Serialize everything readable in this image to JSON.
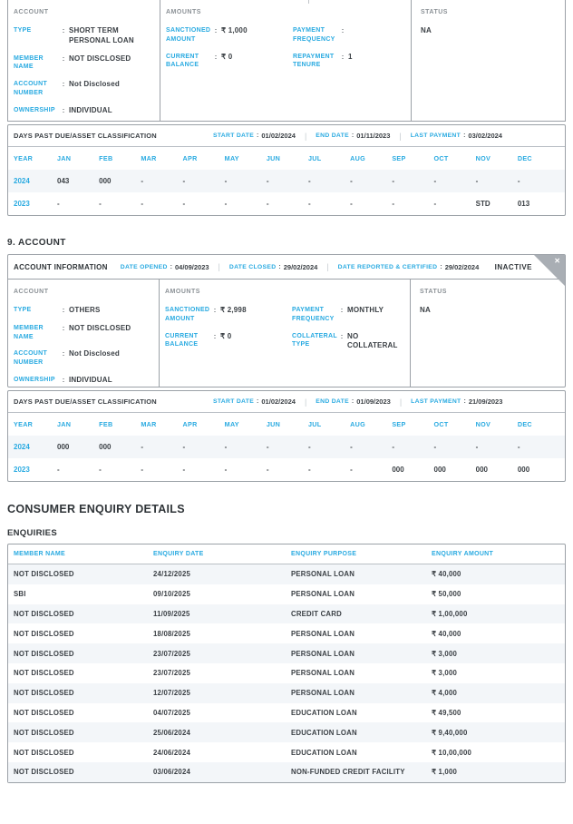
{
  "ui": {
    "colon": ":",
    "pipe": "|",
    "close_glyph": "✕"
  },
  "colors": {
    "accent": "#29aae1",
    "text_dark": "#3b4045",
    "border_gray": "#9ba1a7",
    "row_alt": "#f3f6f9",
    "ribbon_gray": "#a9aeb4"
  },
  "accounts": [
    {
      "account_label": "ACCOUNT",
      "fields": [
        {
          "label": "TYPE",
          "value": "SHORT TERM PERSONAL LOAN"
        },
        {
          "label": "MEMBER NAME",
          "value": "NOT DISCLOSED"
        },
        {
          "label": "ACCOUNT NUMBER",
          "value": "Not Disclosed"
        },
        {
          "label": "OWNERSHIP",
          "value": "INDIVIDUAL"
        }
      ],
      "amounts_label": "AMOUNTS",
      "amounts_left": [
        {
          "label": "SANCTIONED AMOUNT",
          "value": "₹ 1,000"
        },
        {
          "label": "CURRENT BALANCE",
          "value": "₹ 0"
        }
      ],
      "amounts_right": [
        {
          "label": "PAYMENT FREQUENCY",
          "value": ""
        },
        {
          "label": "REPAYMENT TENURE",
          "value": "1"
        }
      ],
      "status_label": "STATUS",
      "status_value": "NA",
      "dpd": {
        "title": "DAYS PAST DUE/ASSET CLASSIFICATION",
        "start_date_label": "START DATE",
        "start_date": "01/02/2024",
        "end_date_label": "END DATE",
        "end_date": "01/11/2023",
        "last_payment_label": "LAST PAYMENT",
        "last_payment": "03/02/2024",
        "columns": [
          "YEAR",
          "JAN",
          "FEB",
          "MAR",
          "APR",
          "MAY",
          "JUN",
          "JUL",
          "AUG",
          "SEP",
          "OCT",
          "NOV",
          "DEC"
        ],
        "rows": [
          {
            "year": "2024",
            "values": [
              "043",
              "000",
              "-",
              "-",
              "-",
              "-",
              "-",
              "-",
              "-",
              "-",
              "-",
              "-"
            ]
          },
          {
            "year": "2023",
            "values": [
              "-",
              "-",
              "-",
              "-",
              "-",
              "-",
              "-",
              "-",
              "-",
              "-",
              "STD",
              "013"
            ]
          }
        ]
      }
    },
    {
      "heading": "9. ACCOUNT",
      "header": {
        "title": "ACCOUNT INFORMATION",
        "date_opened_label": "DATE OPENED",
        "date_opened": "04/09/2023",
        "date_closed_label": "DATE CLOSED",
        "date_closed": "29/02/2024",
        "date_reported_label": "DATE REPORTED & CERTIFIED",
        "date_reported": "29/02/2024",
        "status_badge": "INACTIVE"
      },
      "account_label": "ACCOUNT",
      "fields": [
        {
          "label": "TYPE",
          "value": "OTHERS"
        },
        {
          "label": "MEMBER NAME",
          "value": "NOT DISCLOSED"
        },
        {
          "label": "ACCOUNT NUMBER",
          "value": "Not Disclosed"
        },
        {
          "label": "OWNERSHIP",
          "value": "INDIVIDUAL"
        }
      ],
      "amounts_label": "AMOUNTS",
      "amounts_left": [
        {
          "label": "SANCTIONED AMOUNT",
          "value": "₹ 2,998"
        },
        {
          "label": "CURRENT BALANCE",
          "value": "₹ 0"
        }
      ],
      "amounts_right": [
        {
          "label": "PAYMENT FREQUENCY",
          "value": "MONTHLY"
        },
        {
          "label": "COLLATERAL TYPE",
          "value": "NO COLLATERAL"
        }
      ],
      "status_label": "STATUS",
      "status_value": "NA",
      "dpd": {
        "title": "DAYS PAST DUE/ASSET CLASSIFICATION",
        "start_date_label": "START DATE",
        "start_date": "01/02/2024",
        "end_date_label": "END DATE",
        "end_date": "01/09/2023",
        "last_payment_label": "LAST PAYMENT",
        "last_payment": "21/09/2023",
        "columns": [
          "YEAR",
          "JAN",
          "FEB",
          "MAR",
          "APR",
          "MAY",
          "JUN",
          "JUL",
          "AUG",
          "SEP",
          "OCT",
          "NOV",
          "DEC"
        ],
        "rows": [
          {
            "year": "2024",
            "values": [
              "000",
              "000",
              "-",
              "-",
              "-",
              "-",
              "-",
              "-",
              "-",
              "-",
              "-",
              "-"
            ]
          },
          {
            "year": "2023",
            "values": [
              "-",
              "-",
              "-",
              "-",
              "-",
              "-",
              "-",
              "-",
              "000",
              "000",
              "000",
              "000"
            ]
          }
        ]
      }
    }
  ],
  "enquiry": {
    "heading": "CONSUMER ENQUIRY DETAILS",
    "subheading": "ENQUIRIES",
    "columns": [
      "MEMBER NAME",
      "ENQUIRY DATE",
      "ENQUIRY PURPOSE",
      "ENQUIRY AMOUNT"
    ],
    "rows": [
      [
        "NOT DISCLOSED",
        "24/12/2025",
        "PERSONAL LOAN",
        "₹ 40,000"
      ],
      [
        "SBI",
        "09/10/2025",
        "PERSONAL LOAN",
        "₹ 50,000"
      ],
      [
        "NOT DISCLOSED",
        "11/09/2025",
        "CREDIT CARD",
        "₹ 1,00,000"
      ],
      [
        "NOT DISCLOSED",
        "18/08/2025",
        "PERSONAL LOAN",
        "₹ 40,000"
      ],
      [
        "NOT DISCLOSED",
        "23/07/2025",
        "PERSONAL LOAN",
        "₹ 3,000"
      ],
      [
        "NOT DISCLOSED",
        "23/07/2025",
        "PERSONAL LOAN",
        "₹ 3,000"
      ],
      [
        "NOT DISCLOSED",
        "12/07/2025",
        "PERSONAL LOAN",
        "₹ 4,000"
      ],
      [
        "NOT DISCLOSED",
        "04/07/2025",
        "EDUCATION LOAN",
        "₹ 49,500"
      ],
      [
        "NOT DISCLOSED",
        "25/06/2024",
        "EDUCATION LOAN",
        "₹ 9,40,000"
      ],
      [
        "NOT DISCLOSED",
        "24/06/2024",
        "EDUCATION LOAN",
        "₹ 10,00,000"
      ],
      [
        "NOT DISCLOSED",
        "03/06/2024",
        "NON-FUNDED CREDIT FACILITY",
        "₹ 1,000"
      ]
    ]
  }
}
